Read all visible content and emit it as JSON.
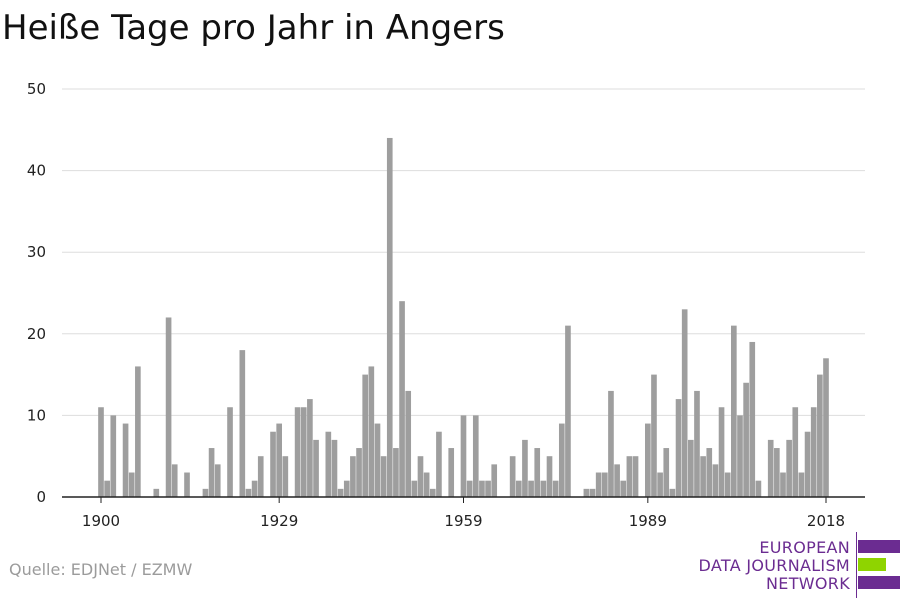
{
  "chart_data": {
    "type": "bar",
    "title": "Heiße Tage pro Jahr in Angers",
    "xlabel": "",
    "ylabel": "",
    "x_start": 1900,
    "x_end": 2018,
    "xticks": [
      1900,
      1929,
      1959,
      1989,
      2018
    ],
    "yticks": [
      0,
      10,
      20,
      30,
      40,
      50
    ],
    "ylim": [
      0,
      50
    ],
    "grid": true,
    "bar_color": "#9e9e9e",
    "values": [
      11,
      2,
      10,
      0,
      9,
      3,
      16,
      0,
      0,
      1,
      0,
      22,
      4,
      0,
      3,
      0,
      0,
      1,
      6,
      4,
      0,
      11,
      0,
      18,
      1,
      2,
      5,
      0,
      8,
      9,
      5,
      0,
      11,
      11,
      12,
      7,
      0,
      8,
      7,
      1,
      2,
      5,
      6,
      15,
      16,
      9,
      5,
      44,
      6,
      24,
      13,
      2,
      5,
      3,
      1,
      8,
      0,
      6,
      0,
      10,
      2,
      10,
      2,
      2,
      4,
      0,
      0,
      5,
      2,
      7,
      2,
      6,
      2,
      5,
      2,
      9,
      21,
      0,
      0,
      1,
      1,
      3,
      3,
      13,
      4,
      2,
      5,
      5,
      0,
      9,
      15,
      3,
      6,
      1,
      12,
      23,
      7,
      13,
      5,
      6,
      4,
      11,
      3,
      21,
      10,
      14,
      19,
      2,
      0,
      7,
      6,
      3,
      7,
      11,
      3,
      8,
      11,
      15,
      17
    ]
  },
  "source": "Quelle: EDJNet / EZMW",
  "logo": {
    "line1": "EUROPEAN",
    "line2": "DATA JOURNALISM",
    "line3": "NETWORK",
    "purple": "#6b2c91",
    "green": "#8fd400"
  }
}
